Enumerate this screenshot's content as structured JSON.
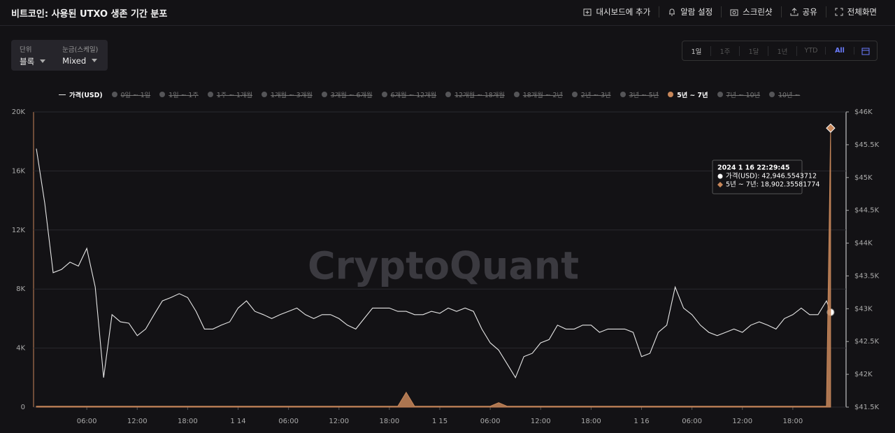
{
  "header": {
    "title": "비트코인: 사용된 UTXO 생존 기간 분포",
    "actions": [
      "대시보드에 추가",
      "알람 설정",
      "스크린샷",
      "공유",
      "전체화면"
    ]
  },
  "controls": [
    {
      "label": "단위",
      "value": "블록"
    },
    {
      "label": "눈금(스케일)",
      "value": "Mixed"
    }
  ],
  "ranges": [
    {
      "label": "1일",
      "active": false
    },
    {
      "label": "1주",
      "active": false
    },
    {
      "label": "1달",
      "active": false
    },
    {
      "label": "1년",
      "active": false
    },
    {
      "label": "YTD",
      "active": false
    },
    {
      "label": "All",
      "active": true
    }
  ],
  "chart_data": {
    "type": "line",
    "watermark": "CryptoQuant",
    "x": [
      "2024-01-13T00:00",
      "2024-01-13T01:00",
      "2024-01-13T02:00",
      "2024-01-13T03:00",
      "2024-01-13T04:00",
      "2024-01-13T05:00",
      "2024-01-13T06:00",
      "2024-01-13T07:00",
      "2024-01-13T08:00",
      "2024-01-13T09:00",
      "2024-01-13T10:00",
      "2024-01-13T11:00",
      "2024-01-13T12:00",
      "2024-01-13T13:00",
      "2024-01-13T14:00",
      "2024-01-13T15:00",
      "2024-01-13T16:00",
      "2024-01-13T17:00",
      "2024-01-13T18:00",
      "2024-01-13T19:00",
      "2024-01-13T20:00",
      "2024-01-13T21:00",
      "2024-01-13T22:00",
      "2024-01-13T23:00",
      "2024-01-14T00:00",
      "2024-01-14T01:00",
      "2024-01-14T02:00",
      "2024-01-14T03:00",
      "2024-01-14T04:00",
      "2024-01-14T05:00",
      "2024-01-14T06:00",
      "2024-01-14T07:00",
      "2024-01-14T08:00",
      "2024-01-14T09:00",
      "2024-01-14T10:00",
      "2024-01-14T11:00",
      "2024-01-14T12:00",
      "2024-01-14T13:00",
      "2024-01-14T14:00",
      "2024-01-14T15:00",
      "2024-01-14T16:00",
      "2024-01-14T17:00",
      "2024-01-14T18:00",
      "2024-01-14T19:00",
      "2024-01-14T20:00",
      "2024-01-14T21:00",
      "2024-01-14T22:00",
      "2024-01-14T23:00",
      "2024-01-15T00:00",
      "2024-01-15T01:00",
      "2024-01-15T02:00",
      "2024-01-15T03:00",
      "2024-01-15T04:00",
      "2024-01-15T05:00",
      "2024-01-15T06:00",
      "2024-01-15T07:00",
      "2024-01-15T08:00",
      "2024-01-15T09:00",
      "2024-01-15T10:00",
      "2024-01-15T11:00",
      "2024-01-15T12:00",
      "2024-01-15T13:00",
      "2024-01-15T14:00",
      "2024-01-15T15:00",
      "2024-01-15T16:00",
      "2024-01-15T17:00",
      "2024-01-15T18:00",
      "2024-01-15T19:00",
      "2024-01-15T20:00",
      "2024-01-15T21:00",
      "2024-01-15T22:00",
      "2024-01-15T23:00",
      "2024-01-16T00:00",
      "2024-01-16T01:00",
      "2024-01-16T02:00",
      "2024-01-16T03:00",
      "2024-01-16T04:00",
      "2024-01-16T05:00",
      "2024-01-16T06:00",
      "2024-01-16T07:00",
      "2024-01-16T08:00",
      "2024-01-16T09:00",
      "2024-01-16T10:00",
      "2024-01-16T11:00",
      "2024-01-16T12:00",
      "2024-01-16T13:00",
      "2024-01-16T14:00",
      "2024-01-16T15:00",
      "2024-01-16T16:00",
      "2024-01-16T17:00",
      "2024-01-16T18:00",
      "2024-01-16T19:00",
      "2024-01-16T20:00",
      "2024-01-16T21:00",
      "2024-01-16T22:00",
      "2024-01-16T22:29:45"
    ],
    "series": [
      {
        "name": "가격(USD)",
        "color": "#e6e6e6",
        "axis": "y2",
        "style": "line",
        "visible": true,
        "values": [
          45440,
          44610,
          43550,
          43600,
          43710,
          43650,
          43920,
          43330,
          41950,
          42910,
          42800,
          42780,
          42590,
          42690,
          42910,
          43120,
          43170,
          43230,
          43170,
          42960,
          42690,
          42690,
          42750,
          42800,
          43010,
          43120,
          42960,
          42910,
          42850,
          42910,
          42960,
          43010,
          42910,
          42850,
          42910,
          42910,
          42850,
          42750,
          42690,
          42850,
          43010,
          43010,
          43010,
          42960,
          42960,
          42910,
          42910,
          42960,
          42930,
          43010,
          42960,
          43010,
          42960,
          42690,
          42480,
          42370,
          42160,
          41950,
          42270,
          42320,
          42480,
          42530,
          42750,
          42690,
          42690,
          42750,
          42750,
          42640,
          42690,
          42690,
          42690,
          42640,
          42270,
          42320,
          42640,
          42750,
          43330,
          43010,
          42910,
          42750,
          42640,
          42590,
          42640,
          42690,
          42640,
          42750,
          42800,
          42750,
          42690,
          42850,
          42910,
          43010,
          42910,
          42910,
          43120,
          42946.5543712
        ]
      },
      {
        "name": "0일 ~ 1일",
        "color": "#555558",
        "visible": false
      },
      {
        "name": "1일 ~ 1주",
        "color": "#555558",
        "visible": false
      },
      {
        "name": "1주 ~ 1개월",
        "color": "#555558",
        "visible": false
      },
      {
        "name": "1개월 ~ 3개월",
        "color": "#555558",
        "visible": false
      },
      {
        "name": "3개월 ~ 6개월",
        "color": "#555558",
        "visible": false
      },
      {
        "name": "6개월 ~ 12개월",
        "color": "#555558",
        "visible": false
      },
      {
        "name": "12개월 ~ 18개월",
        "color": "#555558",
        "visible": false
      },
      {
        "name": "18개월 ~ 2년",
        "color": "#555558",
        "visible": false
      },
      {
        "name": "2년 ~ 3년",
        "color": "#555558",
        "visible": false
      },
      {
        "name": "3년 ~ 5년",
        "color": "#555558",
        "visible": false
      },
      {
        "name": "5년 ~ 7년",
        "color": "#c8875a",
        "axis": "y",
        "style": "area",
        "visible": true,
        "values": [
          60,
          60,
          60,
          60,
          60,
          60,
          60,
          60,
          60,
          60,
          60,
          60,
          60,
          60,
          60,
          60,
          60,
          60,
          60,
          60,
          60,
          60,
          60,
          60,
          60,
          60,
          60,
          60,
          60,
          60,
          60,
          60,
          60,
          60,
          60,
          60,
          60,
          60,
          60,
          60,
          60,
          60,
          60,
          60,
          1000,
          60,
          60,
          60,
          60,
          60,
          60,
          60,
          60,
          60,
          60,
          300,
          60,
          60,
          60,
          60,
          60,
          60,
          60,
          60,
          60,
          60,
          60,
          60,
          60,
          60,
          60,
          60,
          60,
          60,
          60,
          60,
          60,
          60,
          60,
          60,
          60,
          60,
          60,
          60,
          60,
          60,
          60,
          60,
          60,
          60,
          60,
          60,
          60,
          60,
          60,
          18902.35581774
        ]
      },
      {
        "name": "7년 ~ 10년",
        "color": "#555558",
        "visible": false
      },
      {
        "name": "10년 ~",
        "color": "#555558",
        "visible": false
      }
    ],
    "xlim": [
      "2024-01-12T23:40",
      "2024-01-17T00:20"
    ],
    "xticks": [
      {
        "value": "2024-01-13T06:00",
        "label": "06:00"
      },
      {
        "value": "2024-01-13T12:00",
        "label": "12:00"
      },
      {
        "value": "2024-01-13T18:00",
        "label": "18:00"
      },
      {
        "value": "2024-01-14T00:00",
        "label": "1 14"
      },
      {
        "value": "2024-01-14T06:00",
        "label": "06:00"
      },
      {
        "value": "2024-01-14T12:00",
        "label": "12:00"
      },
      {
        "value": "2024-01-14T18:00",
        "label": "18:00"
      },
      {
        "value": "2024-01-15T00:00",
        "label": "1 15"
      },
      {
        "value": "2024-01-15T06:00",
        "label": "06:00"
      },
      {
        "value": "2024-01-15T12:00",
        "label": "12:00"
      },
      {
        "value": "2024-01-15T18:00",
        "label": "18:00"
      },
      {
        "value": "2024-01-16T00:00",
        "label": "1 16"
      },
      {
        "value": "2024-01-16T06:00",
        "label": "06:00"
      },
      {
        "value": "2024-01-16T12:00",
        "label": "12:00"
      },
      {
        "value": "2024-01-16T18:00",
        "label": "18:00"
      }
    ],
    "ylim": [
      0,
      20000
    ],
    "yticks": [
      0,
      {
        "value": 4000,
        "label": "4K"
      },
      {
        "value": 8000,
        "label": "8K"
      },
      {
        "value": 12000,
        "label": "12K"
      },
      {
        "value": 16000,
        "label": "16K"
      },
      {
        "value": 20000,
        "label": "20K"
      }
    ],
    "y2lim": [
      41500,
      46000
    ],
    "y2ticks": [
      {
        "value": 41500,
        "label": "$41.5K"
      },
      {
        "value": 42000,
        "label": "$42K"
      },
      {
        "value": 42500,
        "label": "$42.5K"
      },
      {
        "value": 43000,
        "label": "$43K"
      },
      {
        "value": 43500,
        "label": "$43.5K"
      },
      {
        "value": 44000,
        "label": "$44K"
      },
      {
        "value": 44500,
        "label": "$44.5K"
      },
      {
        "value": 45000,
        "label": "$45K"
      },
      {
        "value": 45500,
        "label": "$45.5K"
      },
      {
        "value": 46000,
        "label": "$46K"
      }
    ],
    "grid": true,
    "tooltip": {
      "title": "2024 1 16 22:29:45",
      "lines": [
        "가격(USD): 42,946.5543712",
        "5년 ~ 7년: 18,902.35581774"
      ]
    }
  }
}
